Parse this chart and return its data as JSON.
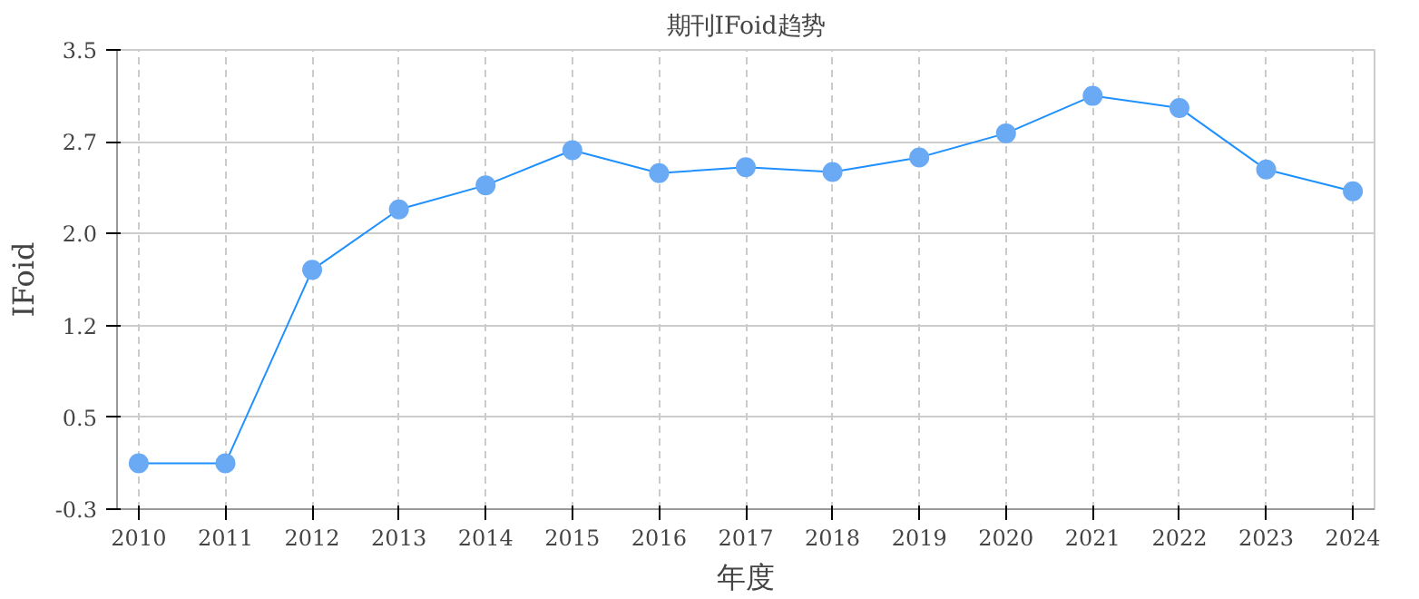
{
  "chart_data": {
    "type": "line",
    "title": "期刊IFoid趋势",
    "xlabel": "年度",
    "ylabel": "IFoid",
    "categories": [
      "2010",
      "2011",
      "2012",
      "2013",
      "2014",
      "2015",
      "2016",
      "2017",
      "2018",
      "2019",
      "2020",
      "2021",
      "2022",
      "2023",
      "2024"
    ],
    "series": [
      {
        "color": "#1e90ff",
        "values": [
          0.08,
          0.08,
          1.68,
          2.18,
          2.38,
          2.67,
          2.48,
          2.53,
          2.49,
          2.61,
          2.81,
          3.12,
          3.02,
          2.51,
          2.33
        ]
      }
    ],
    "ylim": [
      -0.3,
      3.5
    ],
    "yticks": [
      -0.3,
      {
        "value": 0.46,
        "label": "0.5"
      },
      {
        "value": 1.22,
        "label": "1.2"
      },
      {
        "value": 1.98,
        "label": "2.0"
      },
      {
        "value": 2.74,
        "label": "2.7"
      },
      3.5
    ],
    "grid": true,
    "marker": "circle",
    "line_style": "solid"
  }
}
